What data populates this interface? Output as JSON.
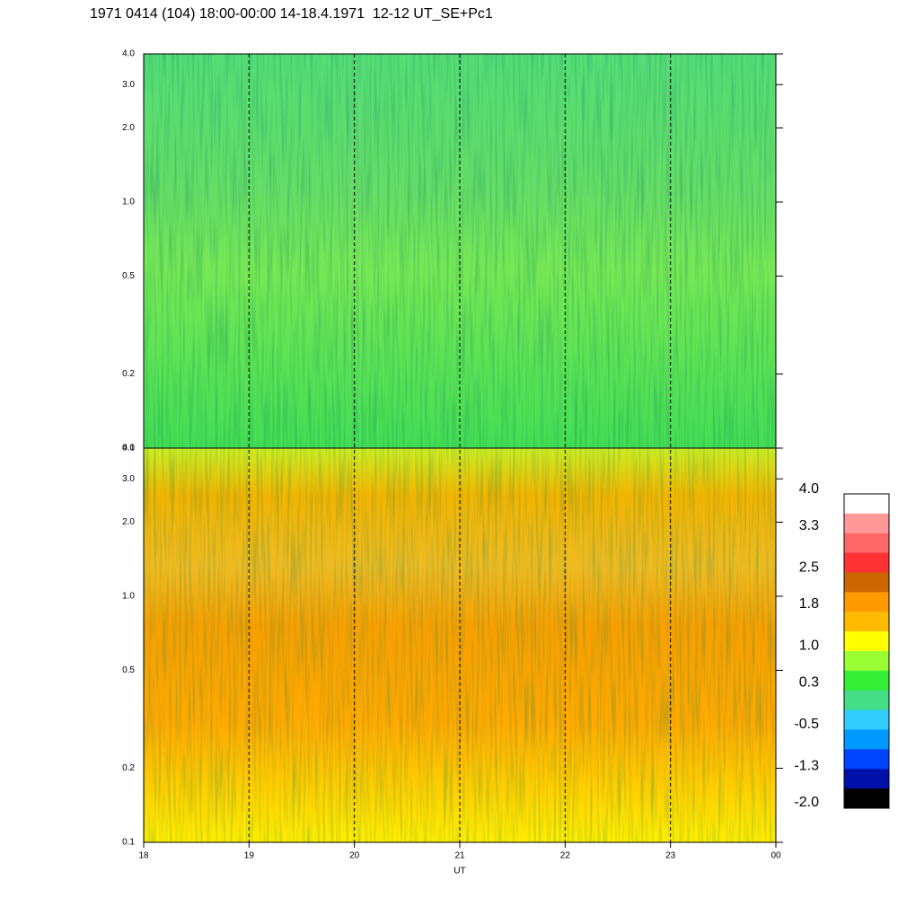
{
  "chart_data": {
    "type": "spectrogram",
    "title": "1971 0414 (104) 18:00-00:00 14-18.4.1971  12-12 UT_SE+Pc1",
    "xlabel": "UT",
    "xlim": [
      18,
      24
    ],
    "xticks": [
      18,
      19,
      20,
      21,
      22,
      23,
      {
        "value": 24,
        "label": "00"
      }
    ],
    "ylim": [
      0.1,
      4
    ],
    "yscale": "log",
    "yticks": [
      0.1,
      0.2,
      0.5,
      {
        "value": 1,
        "label": "1.0"
      },
      {
        "value": 2,
        "label": "2.0"
      },
      {
        "value": 3,
        "label": "3.0"
      },
      {
        "value": 4,
        "label": "4.0"
      }
    ],
    "grid": true,
    "colorbar": {
      "colors": [
        "#ffffff",
        "#ff9999",
        "#ff6666",
        "#ff3333",
        "#cc6600",
        "#ff9900",
        "#ffbb00",
        "#ffff00",
        "#99ff33",
        "#33ee33",
        "#44dd88",
        "#33ccff",
        "#0099ff",
        "#0044ff",
        "#0011aa",
        "#000000"
      ],
      "ticks": [
        {
          "value": 4,
          "label": "4.0"
        },
        {
          "value": 3.3,
          "label": "3.3"
        },
        {
          "value": 2.5,
          "label": "2.5"
        },
        {
          "value": 1.8,
          "label": "1.8"
        },
        {
          "value": 1,
          "label": "1.0"
        },
        0.3,
        -0.5,
        -1.3,
        {
          "value": -2,
          "label": "-2.0"
        }
      ]
    }
  }
}
